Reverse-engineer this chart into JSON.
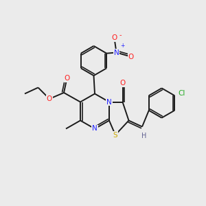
{
  "bg": "#ebebeb",
  "colors": {
    "C": "#1a1a1a",
    "N": "#2020ff",
    "O": "#ff2020",
    "S": "#ccaa00",
    "Cl": "#22aa22",
    "H": "#606090",
    "bond": "#1a1a1a"
  },
  "lw": 1.4,
  "fs": 7.5
}
